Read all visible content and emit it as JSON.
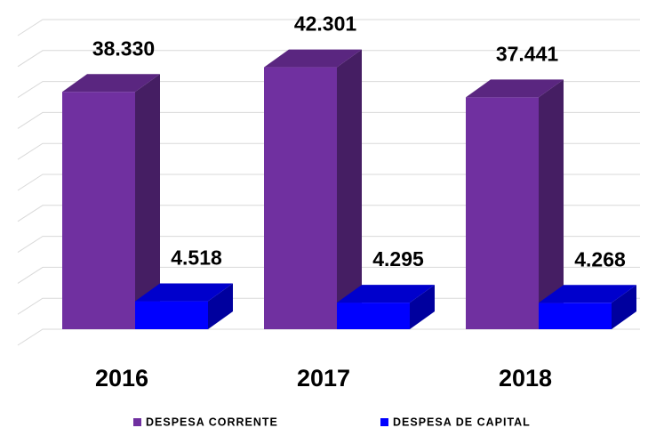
{
  "chart_data": {
    "type": "bar3d",
    "categories": [
      "2016",
      "2017",
      "2018"
    ],
    "series": [
      {
        "name": "DESPESA CORRENTE",
        "color": "#7030a0",
        "values": [
          38330,
          42301,
          37441
        ],
        "value_labels": [
          "38.330",
          "42.301",
          "37.441"
        ]
      },
      {
        "name": "DESPESA DE CAPITAL",
        "color": "#0000ff",
        "values": [
          4518,
          4295,
          4268
        ],
        "value_labels": [
          "4.518",
          "4.295",
          "4.268"
        ]
      }
    ],
    "ylim": [
      0,
      50000
    ],
    "yticks": [
      0,
      5000,
      10000,
      15000,
      20000,
      25000,
      30000,
      35000,
      40000,
      45000,
      50000
    ],
    "grid": true,
    "legend": "bottom"
  }
}
